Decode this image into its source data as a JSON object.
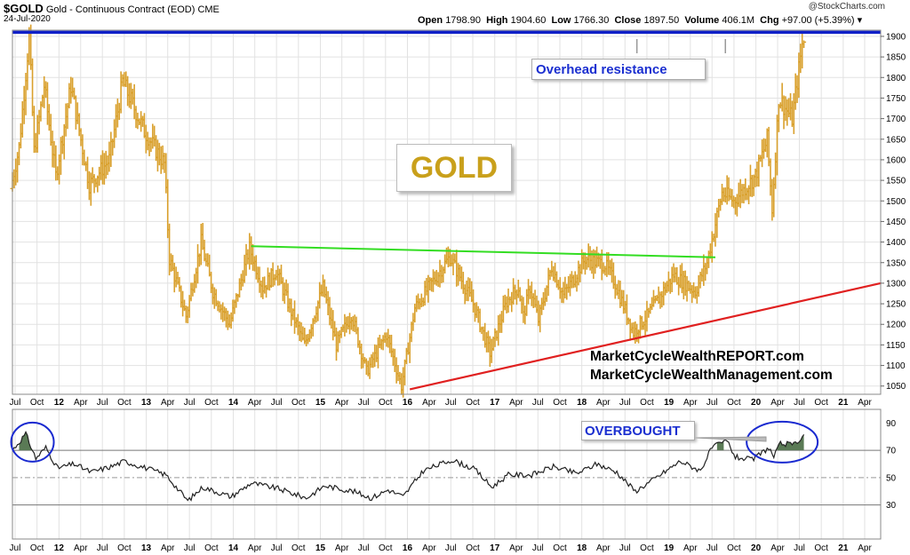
{
  "header": {
    "symbol": "$GOLD",
    "name": "Gold - Continuous Contract (EOD)",
    "exchange": "CME",
    "date": "24-Jul-2020",
    "open_label": "Open",
    "open": "1798.90",
    "high_label": "High",
    "high": "1904.60",
    "low_label": "Low",
    "low": "1766.30",
    "close_label": "Close",
    "close": "1897.50",
    "volume_label": "Volume",
    "volume": "406.1M",
    "chg_label": "Chg",
    "chg": "+97.00 (+5.39%)",
    "watermark": "@StockCharts.com"
  },
  "annotations": {
    "title": "GOLD",
    "resistance": "Overhead resistance",
    "overbought": "OVERBOUGHT",
    "url1": "MarketCycleWealthREPORT.com",
    "url2": "MarketCycleWealthManagement.com"
  },
  "colors": {
    "bars": "#d9a02c",
    "resistance_line": "#1020c8",
    "neckline": "#33dd22",
    "trendline": "#e02020",
    "rsi_line": "#222222",
    "rsi_fill": "#5a7a55",
    "circle": "#1a2ad0"
  },
  "chart_data": [
    {
      "type": "ohlc",
      "series": "Gold weekly price bars",
      "y_ticks": [
        1050,
        1100,
        1150,
        1200,
        1250,
        1300,
        1350,
        1400,
        1450,
        1500,
        1550,
        1600,
        1650,
        1700,
        1750,
        1800,
        1850,
        1900
      ],
      "y_range": [
        1030,
        1915
      ],
      "x_start": "2011-06-20",
      "x_end": "2021-06-07",
      "x_ticks": [
        {
          "label": "Jul",
          "date": "2011-07-01",
          "bold": false
        },
        {
          "label": "Oct",
          "date": "2011-10-01",
          "bold": false
        },
        {
          "label": "12",
          "date": "2012-01-01",
          "bold": true
        },
        {
          "label": "Apr",
          "date": "2012-04-01",
          "bold": false
        },
        {
          "label": "Jul",
          "date": "2012-07-01",
          "bold": false
        },
        {
          "label": "Oct",
          "date": "2012-10-01",
          "bold": false
        },
        {
          "label": "13",
          "date": "2013-01-01",
          "bold": true
        },
        {
          "label": "Apr",
          "date": "2013-04-01",
          "bold": false
        },
        {
          "label": "Jul",
          "date": "2013-07-01",
          "bold": false
        },
        {
          "label": "Oct",
          "date": "2013-10-01",
          "bold": false
        },
        {
          "label": "14",
          "date": "2014-01-01",
          "bold": true
        },
        {
          "label": "Apr",
          "date": "2014-04-01",
          "bold": false
        },
        {
          "label": "Jul",
          "date": "2014-07-01",
          "bold": false
        },
        {
          "label": "Oct",
          "date": "2014-10-01",
          "bold": false
        },
        {
          "label": "15",
          "date": "2015-01-01",
          "bold": true
        },
        {
          "label": "Apr",
          "date": "2015-04-01",
          "bold": false
        },
        {
          "label": "Jul",
          "date": "2015-07-01",
          "bold": false
        },
        {
          "label": "Oct",
          "date": "2015-10-01",
          "bold": false
        },
        {
          "label": "16",
          "date": "2016-01-01",
          "bold": true
        },
        {
          "label": "Apr",
          "date": "2016-04-01",
          "bold": false
        },
        {
          "label": "Jul",
          "date": "2016-07-01",
          "bold": false
        },
        {
          "label": "Oct",
          "date": "2016-10-01",
          "bold": false
        },
        {
          "label": "17",
          "date": "2017-01-01",
          "bold": true
        },
        {
          "label": "Apr",
          "date": "2017-04-01",
          "bold": false
        },
        {
          "label": "Jul",
          "date": "2017-07-01",
          "bold": false
        },
        {
          "label": "Oct",
          "date": "2017-10-01",
          "bold": false
        },
        {
          "label": "18",
          "date": "2018-01-01",
          "bold": true
        },
        {
          "label": "Apr",
          "date": "2018-04-01",
          "bold": false
        },
        {
          "label": "Jul",
          "date": "2018-07-01",
          "bold": false
        },
        {
          "label": "Oct",
          "date": "2018-10-01",
          "bold": false
        },
        {
          "label": "19",
          "date": "2019-01-01",
          "bold": true
        },
        {
          "label": "Apr",
          "date": "2019-04-01",
          "bold": false
        },
        {
          "label": "Jul",
          "date": "2019-07-01",
          "bold": false
        },
        {
          "label": "Oct",
          "date": "2019-10-01",
          "bold": false
        },
        {
          "label": "20",
          "date": "2020-01-01",
          "bold": true
        },
        {
          "label": "Apr",
          "date": "2020-04-01",
          "bold": false
        },
        {
          "label": "Jul",
          "date": "2020-07-01",
          "bold": false
        },
        {
          "label": "Oct",
          "date": "2020-10-01",
          "bold": false
        },
        {
          "label": "21",
          "date": "2021-01-01",
          "bold": true
        },
        {
          "label": "Apr",
          "date": "2021-04-01",
          "bold": false
        }
      ],
      "price_path": [
        [
          "2011-06-20",
          1530
        ],
        [
          "2011-07-25",
          1630
        ],
        [
          "2011-09-05",
          1900
        ],
        [
          "2011-09-26",
          1620
        ],
        [
          "2011-11-07",
          1780
        ],
        [
          "2011-12-26",
          1560
        ],
        [
          "2012-02-27",
          1780
        ],
        [
          "2012-05-14",
          1540
        ],
        [
          "2012-08-06",
          1600
        ],
        [
          "2012-10-01",
          1790
        ],
        [
          "2012-12-31",
          1670
        ],
        [
          "2013-03-25",
          1590
        ],
        [
          "2013-04-15",
          1360
        ],
        [
          "2013-06-24",
          1220
        ],
        [
          "2013-08-26",
          1400
        ],
        [
          "2013-10-14",
          1280
        ],
        [
          "2013-12-23",
          1200
        ],
        [
          "2014-03-17",
          1385
        ],
        [
          "2014-05-12",
          1290
        ],
        [
          "2014-07-07",
          1330
        ],
        [
          "2014-09-08",
          1230
        ],
        [
          "2014-11-03",
          1150
        ],
        [
          "2015-01-19",
          1290
        ],
        [
          "2015-03-16",
          1150
        ],
        [
          "2015-05-18",
          1225
        ],
        [
          "2015-07-20",
          1085
        ],
        [
          "2015-10-12",
          1175
        ],
        [
          "2015-12-14",
          1050
        ],
        [
          "2016-02-08",
          1240
        ],
        [
          "2016-07-04",
          1365
        ],
        [
          "2016-10-10",
          1250
        ],
        [
          "2016-12-19",
          1130
        ],
        [
          "2017-02-27",
          1255
        ],
        [
          "2017-04-17",
          1290
        ],
        [
          "2017-05-08",
          1220
        ],
        [
          "2017-06-05",
          1290
        ],
        [
          "2017-07-10",
          1210
        ],
        [
          "2017-09-04",
          1340
        ],
        [
          "2017-10-23",
          1270
        ],
        [
          "2018-01-22",
          1360
        ],
        [
          "2018-04-16",
          1345
        ],
        [
          "2018-05-28",
          1300
        ],
        [
          "2018-08-13",
          1180
        ],
        [
          "2018-10-15",
          1225
        ],
        [
          "2019-01-28",
          1320
        ],
        [
          "2019-04-29",
          1280
        ],
        [
          "2019-06-17",
          1350
        ],
        [
          "2019-08-19",
          1520
        ],
        [
          "2019-10-07",
          1500
        ],
        [
          "2020-01-06",
          1560
        ],
        [
          "2020-02-24",
          1650
        ],
        [
          "2020-03-16",
          1480
        ],
        [
          "2020-04-13",
          1750
        ],
        [
          "2020-06-08",
          1700
        ],
        [
          "2020-07-24",
          1897.5
        ]
      ],
      "lines": [
        {
          "name": "Overhead resistance",
          "from": [
            "2011-06-20",
            1910
          ],
          "to": [
            "2021-06-07",
            1910
          ]
        },
        {
          "name": "Neckline",
          "from": [
            "2014-03-17",
            1390
          ],
          "to": [
            "2019-07-15",
            1363
          ]
        },
        {
          "name": "Uptrend",
          "from": [
            "2016-01-11",
            1042
          ],
          "to": [
            "2021-06-07",
            1300
          ]
        }
      ]
    },
    {
      "type": "line",
      "series": "RSI",
      "y_ticks": [
        30,
        50,
        70,
        90
      ],
      "y_range": [
        5,
        100
      ],
      "reference_lines": [
        30,
        50,
        70
      ],
      "points": [
        [
          "2011-06-20",
          70
        ],
        [
          "2011-08-15",
          82
        ],
        [
          "2011-09-26",
          64
        ],
        [
          "2011-11-07",
          72
        ],
        [
          "2011-12-26",
          57
        ],
        [
          "2012-03-05",
          60
        ],
        [
          "2012-05-14",
          54
        ],
        [
          "2012-08-06",
          58
        ],
        [
          "2012-10-01",
          62
        ],
        [
          "2012-12-31",
          57
        ],
        [
          "2013-03-25",
          52
        ],
        [
          "2013-06-24",
          33
        ],
        [
          "2013-08-26",
          43
        ],
        [
          "2013-12-23",
          36
        ],
        [
          "2014-03-17",
          46
        ],
        [
          "2014-07-07",
          42
        ],
        [
          "2014-11-03",
          35
        ],
        [
          "2015-01-19",
          44
        ],
        [
          "2015-05-18",
          40
        ],
        [
          "2015-08-03",
          35
        ],
        [
          "2015-10-12",
          41
        ],
        [
          "2015-12-14",
          36
        ],
        [
          "2016-03-07",
          55
        ],
        [
          "2016-07-04",
          63
        ],
        [
          "2016-10-10",
          56
        ],
        [
          "2016-12-19",
          43
        ],
        [
          "2017-02-27",
          52
        ],
        [
          "2017-06-05",
          52
        ],
        [
          "2017-09-04",
          58
        ],
        [
          "2017-12-11",
          53
        ],
        [
          "2018-03-05",
          60
        ],
        [
          "2018-05-28",
          54
        ],
        [
          "2018-08-13",
          40
        ],
        [
          "2018-10-15",
          47
        ],
        [
          "2019-02-18",
          62
        ],
        [
          "2019-05-13",
          55
        ],
        [
          "2019-07-01",
          72
        ],
        [
          "2019-09-02",
          77
        ],
        [
          "2019-10-07",
          65
        ],
        [
          "2019-12-16",
          63
        ],
        [
          "2020-02-24",
          72
        ],
        [
          "2020-03-16",
          65
        ],
        [
          "2020-04-13",
          75
        ],
        [
          "2020-06-08",
          74
        ],
        [
          "2020-07-24",
          82
        ]
      ],
      "overbought_fills": [
        {
          "from": "2011-07-18",
          "to": "2011-09-26"
        },
        {
          "from": "2019-07-22",
          "to": "2019-08-19"
        },
        {
          "from": "2020-03-30",
          "to": "2020-07-24"
        }
      ]
    }
  ]
}
